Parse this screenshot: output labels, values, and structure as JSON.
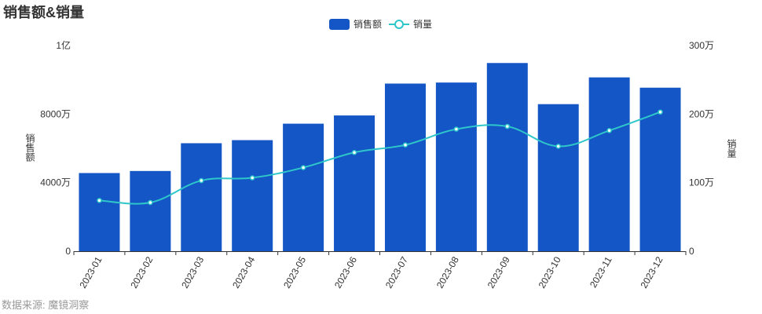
{
  "chart_data": {
    "type": "bar",
    "title": "销售额&销量",
    "source": "数据来源: 魔镜洞察",
    "categories": [
      "2023-01",
      "2023-02",
      "2023-03",
      "2023-04",
      "2023-05",
      "2023-06",
      "2023-07",
      "2023-08",
      "2023-09",
      "2023-10",
      "2023-11",
      "2023-12"
    ],
    "legend": {
      "position": "top-center"
    },
    "y_left": {
      "label": "销售额",
      "range": [
        0,
        100000000
      ],
      "ticks": [
        "0",
        "4000万",
        "8000万",
        "1亿"
      ]
    },
    "y_right": {
      "label": "销量",
      "range": [
        0,
        3000000
      ],
      "ticks": [
        "0",
        "100万",
        "200万",
        "300万"
      ]
    },
    "series": [
      {
        "name": "销售额",
        "type": "bar",
        "axis": "left",
        "color": "#1456C6",
        "values": [
          38000000,
          39000000,
          52500000,
          54000000,
          62000000,
          66000000,
          81500000,
          82000000,
          91500000,
          71500000,
          84500000,
          79500000
        ]
      },
      {
        "name": "销量",
        "type": "line",
        "axis": "right",
        "smooth": true,
        "color": "#2EC7C9",
        "values": [
          740000,
          710000,
          1030000,
          1070000,
          1220000,
          1440000,
          1550000,
          1780000,
          1820000,
          1530000,
          1760000,
          2030000
        ]
      }
    ],
    "grid": false
  }
}
